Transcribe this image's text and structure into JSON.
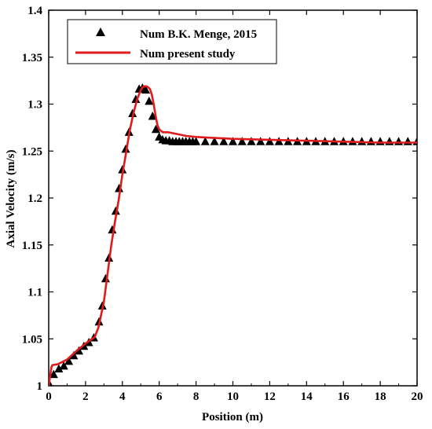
{
  "chart_data": {
    "type": "line",
    "title": "",
    "xlabel": "Position (m)",
    "ylabel": "Axial Velocity (m/s)",
    "xlim": [
      0,
      20
    ],
    "ylim": [
      1.0,
      1.4
    ],
    "xticks": [
      0,
      2,
      4,
      6,
      8,
      10,
      12,
      14,
      16,
      18,
      20
    ],
    "yticks": [
      1,
      1.05,
      1.1,
      1.15,
      1.2,
      1.25,
      1.3,
      1.35,
      1.4
    ],
    "ytick_labels": [
      "1",
      "1.05",
      "1.1",
      "1.15",
      "1.2",
      "1.25",
      "1.3",
      "1.35",
      "1.4"
    ],
    "grid": false,
    "legend_position": "top-left",
    "colors": {
      "reference": "#000000",
      "present": "#e01b1b"
    },
    "series": [
      {
        "name": "Num B.K. Menge, 2015",
        "style": "triangle-markers",
        "x": [
          0.0,
          0.27,
          0.55,
          0.82,
          1.09,
          1.36,
          1.64,
          1.91,
          2.18,
          2.45,
          2.73,
          2.91,
          3.09,
          3.27,
          3.45,
          3.64,
          3.82,
          4.0,
          4.18,
          4.36,
          4.55,
          4.73,
          4.91,
          5.09,
          5.27,
          5.45,
          5.64,
          5.82,
          6.0,
          6.18,
          6.36,
          6.55,
          6.73,
          6.91,
          7.09,
          7.27,
          7.45,
          7.64,
          7.82,
          8.0,
          8.5,
          9.0,
          9.5,
          10.0,
          10.5,
          11.0,
          11.5,
          12.0,
          12.5,
          13.0,
          13.5,
          14.0,
          14.5,
          15.0,
          15.5,
          16.0,
          16.5,
          17.0,
          17.5,
          18.0,
          18.5,
          19.0,
          19.5,
          20.0
        ],
        "y": [
          1.003,
          1.012,
          1.018,
          1.021,
          1.026,
          1.032,
          1.037,
          1.042,
          1.046,
          1.051,
          1.068,
          1.085,
          1.114,
          1.136,
          1.166,
          1.186,
          1.21,
          1.23,
          1.252,
          1.27,
          1.29,
          1.305,
          1.316,
          1.317,
          1.315,
          1.303,
          1.287,
          1.273,
          1.265,
          1.262,
          1.261,
          1.261,
          1.26,
          1.26,
          1.26,
          1.26,
          1.26,
          1.26,
          1.26,
          1.26,
          1.26,
          1.26,
          1.26,
          1.26,
          1.26,
          1.26,
          1.26,
          1.26,
          1.26,
          1.26,
          1.26,
          1.26,
          1.26,
          1.26,
          1.26,
          1.26,
          1.26,
          1.26,
          1.26,
          1.26,
          1.26,
          1.26,
          1.26,
          1.26
        ]
      },
      {
        "name": "Num present study",
        "style": "line",
        "x": [
          0.0,
          0.15,
          0.2,
          0.5,
          1.0,
          1.5,
          2.0,
          2.5,
          2.7,
          3.0,
          3.2,
          3.4,
          3.6,
          3.8,
          4.0,
          4.2,
          4.4,
          4.6,
          4.8,
          5.0,
          5.1,
          5.2,
          5.3,
          5.4,
          5.5,
          5.6,
          5.7,
          5.8,
          5.9,
          6.0,
          6.2,
          6.5,
          7.0,
          7.5,
          8.0,
          9.0,
          10.0,
          12.0,
          14.0,
          16.0,
          18.0,
          20.0
        ],
        "y": [
          1.0,
          1.02,
          1.022,
          1.023,
          1.028,
          1.037,
          1.045,
          1.052,
          1.062,
          1.09,
          1.12,
          1.15,
          1.175,
          1.198,
          1.225,
          1.248,
          1.272,
          1.29,
          1.305,
          1.315,
          1.318,
          1.319,
          1.319,
          1.318,
          1.316,
          1.31,
          1.3,
          1.288,
          1.278,
          1.273,
          1.27,
          1.27,
          1.268,
          1.266,
          1.265,
          1.264,
          1.263,
          1.262,
          1.261,
          1.26,
          1.259,
          1.259
        ]
      }
    ]
  }
}
